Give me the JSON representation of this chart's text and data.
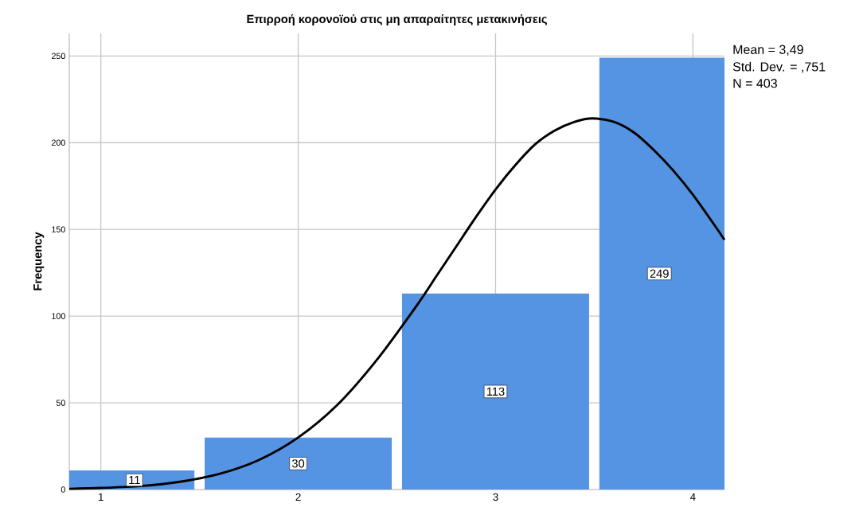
{
  "chart_data": {
    "type": "histogram",
    "title": "Επιρροή κορονοϊού στις μη απαραίτητες μετακινήσεις",
    "ylabel": "Frequency",
    "bins": [
      0.84,
      1.5,
      2.5,
      3.5,
      4.16
    ],
    "values": [
      11,
      30,
      113,
      249
    ],
    "color": "#5594e2",
    "value_labels": [
      "11",
      "30",
      "113",
      "249"
    ],
    "series": [
      {
        "type": "line",
        "color": "#000000",
        "x": [
          0.84,
          1.0,
          1.2,
          1.4,
          1.6,
          1.8,
          2.0,
          2.2,
          2.4,
          2.6,
          2.7,
          2.8,
          2.9,
          3.0,
          3.1,
          3.2,
          3.3,
          3.4,
          3.49,
          3.6,
          3.7,
          3.8,
          3.9,
          4.0,
          4.1,
          4.16
        ],
        "values": [
          0.4,
          0.9,
          2.0,
          4.5,
          9,
          17,
          30,
          49,
          75,
          106,
          123,
          140,
          157,
          173,
          187,
          199,
          207,
          212,
          214,
          212,
          206,
          196,
          184,
          170,
          154,
          144
        ]
      }
    ],
    "xlim": [
      0.84,
      4.16
    ],
    "xticks": [
      1,
      2,
      3,
      4
    ],
    "ylim": [
      0,
      263
    ],
    "yticks": [
      0,
      50,
      100,
      150,
      200,
      250
    ],
    "grid": true,
    "annotations": [
      "Mean = 3,49",
      "Std. Dev. = ,751",
      "N = 403"
    ]
  }
}
